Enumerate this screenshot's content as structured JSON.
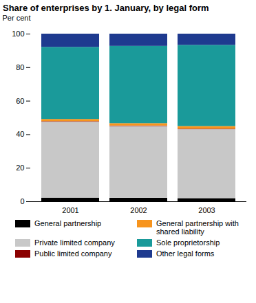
{
  "chart_data": {
    "type": "bar",
    "stacked": true,
    "title": "Share of enterprises by 1. January, by legal form",
    "y_label": "Per cent",
    "categories": [
      "2001",
      "2002",
      "2003"
    ],
    "series": [
      {
        "name": "General partnership",
        "color": "#000000",
        "values": [
          2.2,
          2.1,
          1.9
        ]
      },
      {
        "name": "Private limited company",
        "color": "#c8c8c8",
        "values": [
          45.3,
          42.8,
          41.1
        ]
      },
      {
        "name": "Public limited company",
        "color": "#8b0000",
        "values": [
          0.3,
          0.3,
          0.3
        ]
      },
      {
        "name": "General partnership with shared liability",
        "color": "#f7941d",
        "values": [
          1.3,
          1.4,
          1.6
        ]
      },
      {
        "name": "Sole proprietorship",
        "color": "#1a9a9a",
        "values": [
          43.0,
          46.1,
          48.4
        ]
      },
      {
        "name": "Other legal forms",
        "color": "#1e3a8f",
        "values": [
          7.9,
          7.3,
          6.7
        ]
      }
    ],
    "ylim": [
      0,
      100
    ],
    "yticks": [
      0,
      20,
      40,
      60,
      80,
      100
    ],
    "grid": false
  }
}
